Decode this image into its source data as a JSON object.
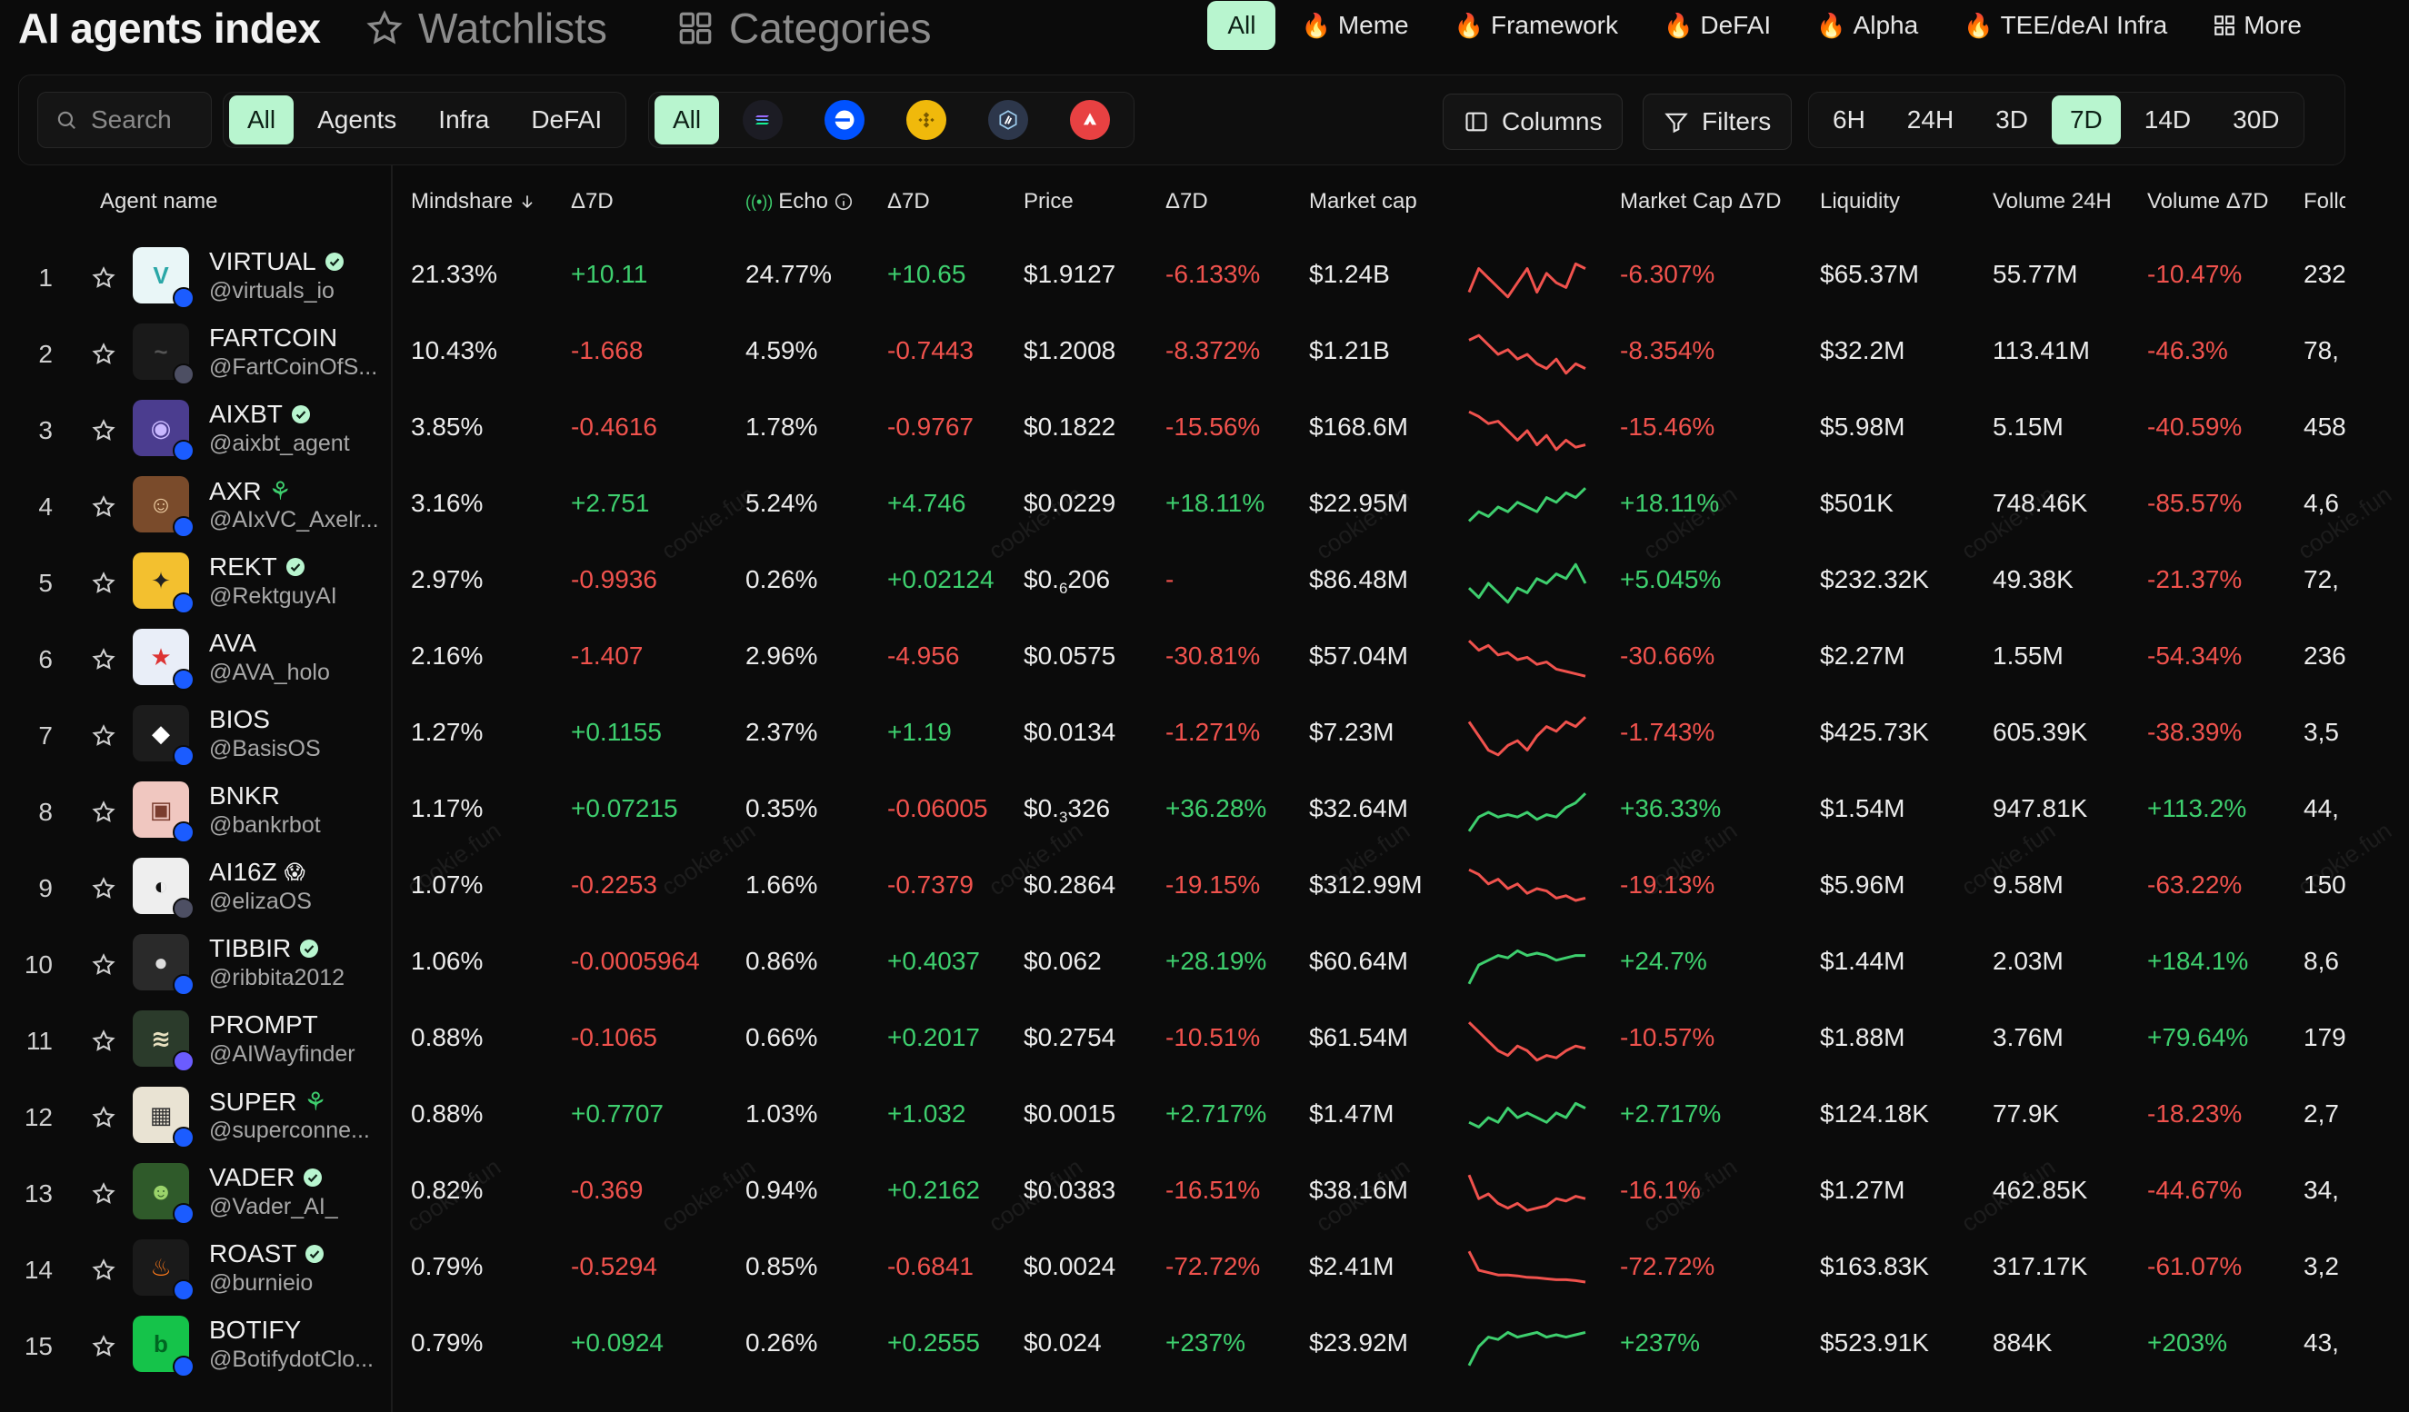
{
  "header": {
    "title": "AI agents index",
    "nav": [
      {
        "label": "Watchlists",
        "icon": "star-outline-icon"
      },
      {
        "label": "Categories",
        "icon": "grid-icon"
      }
    ],
    "categories": [
      "All",
      "Meme",
      "Framework",
      "DeFAI",
      "Alpha",
      "TEE/deAI Infra"
    ],
    "more_label": "More"
  },
  "toolbar": {
    "search_placeholder": "Search",
    "type_filters": [
      "All",
      "Agents",
      "Infra",
      "DeFAI"
    ],
    "chain_all": "All",
    "chains": [
      "solana-icon",
      "base-icon",
      "bnb-icon",
      "arbitrum-icon",
      "avalanche-icon"
    ],
    "columns_label": "Columns",
    "filters_label": "Filters",
    "timeframes": [
      "6H",
      "24H",
      "3D",
      "7D",
      "14D",
      "30D"
    ],
    "active_timeframe": "7D"
  },
  "columns": {
    "agent_name": "Agent name",
    "mindshare": "Mindshare",
    "d7_1": "Δ7D",
    "echo": "Echo",
    "d7_2": "Δ7D",
    "price": "Price",
    "d7_3": "Δ7D",
    "market_cap": "Market cap",
    "market_cap_d7": "Market Cap Δ7D",
    "liquidity": "Liquidity",
    "volume_24h": "Volume 24H",
    "volume_d7": "Volume Δ7D",
    "followers": "Follo"
  },
  "watermark_text": "cookie.fun",
  "rows": [
    {
      "rank": "1",
      "name": "VIRTUAL",
      "handle": "@virtuals_io",
      "mindshare": "21.33%",
      "m_d": "+10.11",
      "echo": "24.77%",
      "e_d": "+10.65",
      "price": "$1.9127",
      "price_sub": "",
      "price_tail": "",
      "p_d": "-6.133%",
      "mcap": "$1.24B",
      "mc_d": "-6.307%",
      "liq": "$65.37M",
      "vol": "55.77M",
      "vol_d": "-10.47%",
      "fol": "232",
      "trend": [
        0.8,
        0.3,
        0.5,
        0.7,
        0.9,
        0.6,
        0.3,
        0.8,
        0.4,
        0.6,
        0.7,
        0.2,
        0.3
      ]
    },
    {
      "rank": "2",
      "name": "FARTCOIN",
      "handle": "@FartCoinOfS...",
      "mindshare": "10.43%",
      "m_d": "-1.668",
      "echo": "4.59%",
      "e_d": "-0.7443",
      "price": "$1.2008",
      "price_sub": "",
      "price_tail": "",
      "p_d": "-8.372%",
      "mcap": "$1.21B",
      "mc_d": "-8.354%",
      "liq": "$32.2M",
      "vol": "113.41M",
      "vol_d": "-46.3%",
      "fol": "78,",
      "trend": [
        0.2,
        0.1,
        0.3,
        0.5,
        0.4,
        0.6,
        0.5,
        0.7,
        0.8,
        0.6,
        0.9,
        0.7,
        0.8
      ]
    },
    {
      "rank": "3",
      "name": "AIXBT",
      "handle": "@aixbt_agent",
      "mindshare": "3.85%",
      "m_d": "-0.4616",
      "echo": "1.78%",
      "e_d": "-0.9767",
      "price": "$0.1822",
      "price_sub": "",
      "price_tail": "",
      "p_d": "-15.56%",
      "mcap": "$168.6M",
      "mc_d": "-15.46%",
      "liq": "$5.98M",
      "vol": "5.15M",
      "vol_d": "-40.59%",
      "fol": "458",
      "trend": [
        0.1,
        0.2,
        0.35,
        0.3,
        0.5,
        0.7,
        0.5,
        0.8,
        0.6,
        0.9,
        0.7,
        0.85,
        0.8
      ]
    },
    {
      "rank": "4",
      "name": "AXR",
      "handle": "@AIxVC_Axelr...",
      "mindshare": "3.16%",
      "m_d": "+2.751",
      "echo": "5.24%",
      "e_d": "+4.746",
      "price": "$0.0229",
      "price_sub": "",
      "price_tail": "",
      "p_d": "+18.11%",
      "mcap": "$22.95M",
      "mc_d": "+18.11%",
      "liq": "$501K",
      "vol": "748.46K",
      "vol_d": "-85.57%",
      "fol": "4,6",
      "trend": [
        0.8,
        0.6,
        0.7,
        0.5,
        0.6,
        0.4,
        0.5,
        0.6,
        0.3,
        0.4,
        0.2,
        0.3,
        0.1
      ]
    },
    {
      "rank": "5",
      "name": "REKT",
      "handle": "@RektguyAI",
      "mindshare": "2.97%",
      "m_d": "-0.9936",
      "echo": "0.26%",
      "e_d": "+0.02124",
      "price": "$0.",
      "price_sub": "6",
      "price_tail": "206",
      "p_d": "-",
      "mcap": "$86.48M",
      "mc_d": "+5.045%",
      "liq": "$232.32K",
      "vol": "49.38K",
      "vol_d": "-21.37%",
      "fol": "72,",
      "trend": [
        0.6,
        0.8,
        0.5,
        0.7,
        0.9,
        0.6,
        0.7,
        0.4,
        0.5,
        0.3,
        0.4,
        0.1,
        0.5
      ]
    },
    {
      "rank": "6",
      "name": "AVA",
      "handle": "@AVA_holo",
      "mindshare": "2.16%",
      "m_d": "-1.407",
      "echo": "2.96%",
      "e_d": "-4.956",
      "price": "$0.0575",
      "price_sub": "",
      "price_tail": "",
      "p_d": "-30.81%",
      "mcap": "$57.04M",
      "mc_d": "-30.66%",
      "liq": "$2.27M",
      "vol": "1.55M",
      "vol_d": "-54.34%",
      "fol": "236",
      "trend": [
        0.1,
        0.3,
        0.2,
        0.4,
        0.35,
        0.5,
        0.45,
        0.6,
        0.55,
        0.7,
        0.75,
        0.8,
        0.85
      ]
    },
    {
      "rank": "7",
      "name": "BIOS",
      "handle": "@BasisOS",
      "mindshare": "1.27%",
      "m_d": "+0.1155",
      "echo": "2.37%",
      "e_d": "+1.19",
      "price": "$0.0134",
      "price_sub": "",
      "price_tail": "",
      "p_d": "-1.271%",
      "mcap": "$7.23M",
      "mc_d": "-1.743%",
      "liq": "$425.73K",
      "vol": "605.39K",
      "vol_d": "-38.39%",
      "fol": "3,5",
      "trend": [
        0.2,
        0.5,
        0.8,
        0.9,
        0.7,
        0.6,
        0.8,
        0.5,
        0.3,
        0.4,
        0.2,
        0.3,
        0.1
      ]
    },
    {
      "rank": "8",
      "name": "BNKR",
      "handle": "@bankrbot",
      "mindshare": "1.17%",
      "m_d": "+0.07215",
      "echo": "0.35%",
      "e_d": "-0.06005",
      "price": "$0.",
      "price_sub": "3",
      "price_tail": "326",
      "p_d": "+36.28%",
      "mcap": "$32.64M",
      "mc_d": "+36.33%",
      "liq": "$1.54M",
      "vol": "947.81K",
      "vol_d": "+113.2%",
      "fol": "44,",
      "trend": [
        0.9,
        0.6,
        0.5,
        0.6,
        0.55,
        0.6,
        0.5,
        0.65,
        0.55,
        0.6,
        0.4,
        0.3,
        0.1
      ]
    },
    {
      "rank": "9",
      "name": "AI16Z",
      "handle": "@elizaOS",
      "mindshare": "1.07%",
      "m_d": "-0.2253",
      "echo": "1.66%",
      "e_d": "-0.7379",
      "price": "$0.2864",
      "price_sub": "",
      "price_tail": "",
      "p_d": "-19.15%",
      "mcap": "$312.99M",
      "mc_d": "-19.13%",
      "liq": "$5.96M",
      "vol": "9.58M",
      "vol_d": "-63.22%",
      "fol": "150",
      "trend": [
        0.1,
        0.2,
        0.4,
        0.3,
        0.5,
        0.4,
        0.6,
        0.5,
        0.55,
        0.7,
        0.65,
        0.75,
        0.7
      ]
    },
    {
      "rank": "10",
      "name": "TIBBIR",
      "handle": "@ribbita2012",
      "mindshare": "1.06%",
      "m_d": "-0.0005964",
      "echo": "0.86%",
      "e_d": "+0.4037",
      "price": "$0.062",
      "price_sub": "",
      "price_tail": "",
      "p_d": "+28.19%",
      "mcap": "$60.64M",
      "mc_d": "+24.7%",
      "liq": "$1.44M",
      "vol": "2.03M",
      "vol_d": "+184.1%",
      "fol": "8,6",
      "trend": [
        0.9,
        0.5,
        0.4,
        0.3,
        0.35,
        0.2,
        0.3,
        0.25,
        0.3,
        0.4,
        0.35,
        0.3,
        0.3
      ]
    },
    {
      "rank": "11",
      "name": "PROMPT",
      "handle": "@AIWayfinder",
      "mindshare": "0.88%",
      "m_d": "-0.1065",
      "echo": "0.66%",
      "e_d": "+0.2017",
      "price": "$0.2754",
      "price_sub": "",
      "price_tail": "",
      "p_d": "-10.51%",
      "mcap": "$61.54M",
      "mc_d": "-10.57%",
      "liq": "$1.88M",
      "vol": "3.76M",
      "vol_d": "+79.64%",
      "fol": "179",
      "trend": [
        0.1,
        0.3,
        0.5,
        0.7,
        0.8,
        0.6,
        0.7,
        0.9,
        0.8,
        0.85,
        0.7,
        0.6,
        0.65
      ]
    },
    {
      "rank": "12",
      "name": "SUPER",
      "handle": "@superconne...",
      "mindshare": "0.88%",
      "m_d": "+0.7707",
      "echo": "1.03%",
      "e_d": "+1.032",
      "price": "$0.0015",
      "price_sub": "",
      "price_tail": "",
      "p_d": "+2.717%",
      "mcap": "$1.47M",
      "mc_d": "+2.717%",
      "liq": "$124.18K",
      "vol": "77.9K",
      "vol_d": "-18.23%",
      "fol": "2,7",
      "trend": [
        0.6,
        0.7,
        0.5,
        0.6,
        0.3,
        0.5,
        0.4,
        0.5,
        0.6,
        0.4,
        0.5,
        0.2,
        0.3
      ]
    },
    {
      "rank": "13",
      "name": "VADER",
      "handle": "@Vader_AI_",
      "mindshare": "0.82%",
      "m_d": "-0.369",
      "echo": "0.94%",
      "e_d": "+0.2162",
      "price": "$0.0383",
      "price_sub": "",
      "price_tail": "",
      "p_d": "-16.51%",
      "mcap": "$38.16M",
      "mc_d": "-16.1%",
      "liq": "$1.27M",
      "vol": "462.85K",
      "vol_d": "-44.67%",
      "fol": "34,",
      "trend": [
        0.1,
        0.6,
        0.5,
        0.7,
        0.8,
        0.7,
        0.85,
        0.8,
        0.75,
        0.6,
        0.65,
        0.55,
        0.6
      ]
    },
    {
      "rank": "14",
      "name": "ROAST",
      "handle": "@burnieio",
      "mindshare": "0.79%",
      "m_d": "-0.5294",
      "echo": "0.85%",
      "e_d": "-0.6841",
      "price": "$0.0024",
      "price_sub": "",
      "price_tail": "",
      "p_d": "-72.72%",
      "mcap": "$2.41M",
      "mc_d": "-72.72%",
      "liq": "$163.83K",
      "vol": "317.17K",
      "vol_d": "-61.07%",
      "fol": "3,2",
      "trend": [
        0.1,
        0.5,
        0.55,
        0.6,
        0.6,
        0.62,
        0.65,
        0.66,
        0.68,
        0.7,
        0.7,
        0.72,
        0.75
      ]
    },
    {
      "rank": "15",
      "name": "BOTIFY",
      "handle": "@BotifydotClo...",
      "mindshare": "0.79%",
      "m_d": "+0.0924",
      "echo": "0.26%",
      "e_d": "+0.2555",
      "price": "$0.024",
      "price_sub": "",
      "price_tail": "",
      "p_d": "+237%",
      "mcap": "$23.92M",
      "mc_d": "+237%",
      "liq": "$523.91K",
      "vol": "884K",
      "vol_d": "+203%",
      "fol": "43,",
      "trend": [
        0.9,
        0.5,
        0.3,
        0.35,
        0.2,
        0.3,
        0.25,
        0.2,
        0.3,
        0.25,
        0.3,
        0.25,
        0.2
      ]
    }
  ],
  "colors": {
    "accent": "#b8f5cf",
    "positive": "#3ecf6e",
    "negative": "#f0524d",
    "background": "#0b0b0b"
  }
}
